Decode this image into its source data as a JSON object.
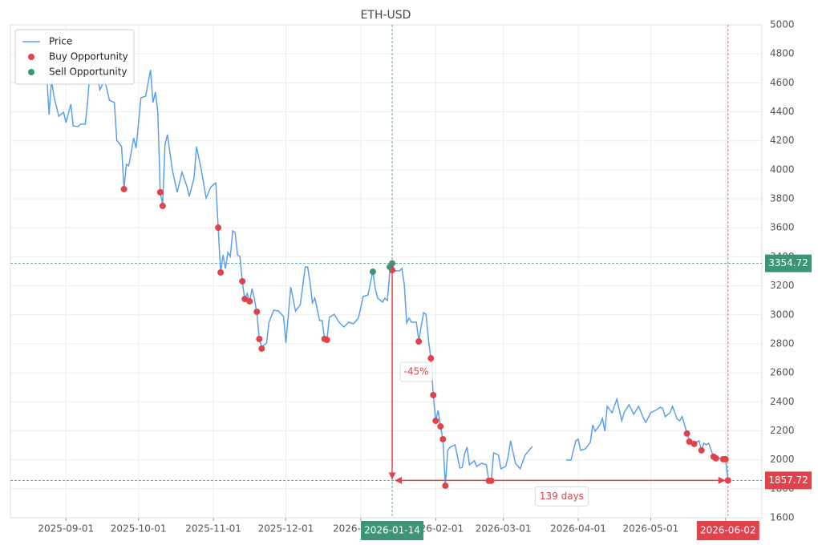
{
  "chart_data": {
    "type": "line",
    "title": "ETH-USD",
    "x": [
      "2025-08-24",
      "2025-08-25",
      "2025-08-26",
      "2025-08-27",
      "2025-08-29",
      "2025-08-31",
      "2025-09-01",
      "2025-09-03",
      "2025-09-04",
      "2025-09-06",
      "2025-09-07",
      "2025-09-09",
      "2025-09-10",
      "2025-09-11",
      "2025-09-13",
      "2025-09-15",
      "2025-09-17",
      "2025-09-19",
      "2025-09-21",
      "2025-09-22",
      "2025-09-24",
      "2025-09-25",
      "2025-09-26",
      "2025-09-27",
      "2025-09-29",
      "2025-09-30",
      "2025-10-02",
      "2025-10-04",
      "2025-10-06",
      "2025-10-07",
      "2025-10-08",
      "2025-10-09",
      "2025-10-10",
      "2025-10-11",
      "2025-10-12",
      "2025-10-13",
      "2025-10-15",
      "2025-10-17",
      "2025-10-19",
      "2025-10-21",
      "2025-10-22",
      "2025-10-24",
      "2025-10-25",
      "2025-10-27",
      "2025-10-29",
      "2025-10-31",
      "2025-11-02",
      "2025-11-03",
      "2025-11-04",
      "2025-11-05",
      "2025-11-06",
      "2025-11-07",
      "2025-11-08",
      "2025-11-09",
      "2025-11-10",
      "2025-11-11",
      "2025-11-12",
      "2025-11-13",
      "2025-11-14",
      "2025-11-15",
      "2025-11-16",
      "2025-11-17",
      "2025-11-18",
      "2025-11-19",
      "2025-11-20",
      "2025-11-21",
      "2025-11-23",
      "2025-11-24",
      "2025-11-26",
      "2025-11-28",
      "2025-11-30",
      "2025-12-01",
      "2025-12-03",
      "2025-12-05",
      "2025-12-07",
      "2025-12-09",
      "2025-12-10",
      "2025-12-11",
      "2025-12-12",
      "2025-12-13",
      "2025-12-15",
      "2025-12-16",
      "2025-12-17",
      "2025-12-18",
      "2025-12-19",
      "2025-12-21",
      "2025-12-23",
      "2025-12-25",
      "2025-12-27",
      "2025-12-29",
      "2025-12-31",
      "2026-01-02",
      "2026-01-04",
      "2026-01-06",
      "2026-01-07",
      "2026-01-08",
      "2026-01-10",
      "2026-01-11",
      "2026-01-12",
      "2026-01-13",
      "2026-01-14",
      "2026-01-15",
      "2026-01-17",
      "2026-01-18",
      "2026-01-19",
      "2026-01-20",
      "2026-01-21",
      "2026-01-22",
      "2026-01-24",
      "2026-01-25",
      "2026-01-27",
      "2026-01-28",
      "2026-01-29",
      "2026-01-30",
      "2026-01-31",
      "2026-02-01",
      "2026-02-02",
      "2026-02-03",
      "2026-02-04",
      "2026-02-05",
      "2026-02-06",
      "2026-02-07",
      "2026-02-09",
      "2026-02-11",
      "2026-02-12",
      "2026-02-13",
      "2026-02-14",
      "2026-02-15",
      "2026-02-17",
      "2026-02-18",
      "2026-02-20",
      "2026-02-22",
      "2026-02-23",
      "2026-02-24",
      "2026-02-25",
      "2026-02-27",
      "2026-02-28",
      "2026-03-02",
      "2026-03-03",
      "2026-03-04",
      "2026-03-06",
      "2026-03-08",
      "2026-03-10",
      "2026-03-13",
      "2026-03-20",
      "2026-03-27",
      "2026-03-29",
      "2026-03-31",
      "2026-04-01",
      "2026-04-02",
      "2026-04-04",
      "2026-04-06",
      "2026-04-07",
      "2026-04-08",
      "2026-04-10",
      "2026-04-11",
      "2026-04-12",
      "2026-04-13",
      "2026-04-15",
      "2026-04-17",
      "2026-04-19",
      "2026-04-20",
      "2026-04-22",
      "2026-04-24",
      "2026-04-26",
      "2026-04-28",
      "2026-04-29",
      "2026-05-01",
      "2026-05-03",
      "2026-05-05",
      "2026-05-06",
      "2026-05-07",
      "2026-05-09",
      "2026-05-10",
      "2026-05-12",
      "2026-05-13",
      "2026-05-14",
      "2026-05-16",
      "2026-05-17",
      "2026-05-19",
      "2026-05-21",
      "2026-05-22",
      "2026-05-23",
      "2026-05-24",
      "2026-05-25",
      "2026-05-27",
      "2026-05-28",
      "2026-05-30",
      "2026-05-31",
      "2026-06-01",
      "2026-06-02"
    ],
    "series": [
      {
        "name": "Price",
        "type": "line",
        "color": "#5ba0ec",
        "values": [
          4674,
          4380,
          4619,
          4508,
          4370,
          4397,
          4326,
          4453,
          4303,
          4298,
          4315,
          4315,
          4480,
          4700,
          4757,
          4552,
          4620,
          4480,
          4464,
          4204,
          4160,
          3867,
          4038,
          4027,
          4220,
          4150,
          4497,
          4508,
          4690,
          4464,
          4536,
          4397,
          3845,
          3762,
          4177,
          4243,
          4000,
          3845,
          3983,
          3889,
          3817,
          3944,
          4160,
          4000,
          3806,
          3883,
          3911,
          3596,
          3292,
          3413,
          3320,
          3430,
          3402,
          3579,
          3568,
          3413,
          3402,
          3225,
          3109,
          3148,
          3087,
          3181,
          3109,
          3015,
          2833,
          2778,
          2805,
          2949,
          3032,
          3026,
          2988,
          2805,
          3192,
          3026,
          3071,
          3330,
          3330,
          3225,
          3082,
          3115,
          2960,
          2960,
          2833,
          2827,
          2982,
          3004,
          2949,
          2916,
          2949,
          2938,
          2977,
          3126,
          3137,
          3303,
          3181,
          3115,
          3087,
          3115,
          3098,
          3292,
          3354.72,
          3303,
          3303,
          3320,
          3209,
          2944,
          2977,
          2949,
          2949,
          2822,
          3015,
          3004,
          2833,
          2700,
          2446,
          2269,
          2341,
          2230,
          2142,
          1821,
          2065,
          2087,
          2103,
          1943,
          1948,
          2042,
          2087,
          1965,
          1993,
          1954,
          1976,
          1965,
          1855,
          1855,
          2048,
          2032,
          1938,
          1954,
          2021,
          2131,
          1976,
          1938,
          2032,
          2092,
          null,
          1998,
          1998,
          2131,
          2142,
          2065,
          2076,
          2120,
          2241,
          2197,
          2241,
          2286,
          2197,
          2369,
          2325,
          2418,
          2269,
          2325,
          2380,
          2314,
          2369,
          2286,
          2258,
          2325,
          2341,
          2363,
          2352,
          2297,
          2325,
          2369,
          2280,
          2269,
          2297,
          2186,
          2131,
          2114,
          2131,
          2065,
          2114,
          2103,
          2114,
          2021,
          2010,
          2010,
          2004,
          2004,
          1857.72
        ]
      },
      {
        "name": "Buy Opportunity",
        "type": "scatter",
        "color": "#e0434b",
        "x": [
          "2025-09-25",
          "2025-10-10",
          "2025-10-11",
          "2025-11-03",
          "2025-11-04",
          "2025-11-13",
          "2025-11-14",
          "2025-11-16",
          "2025-11-19",
          "2025-11-20",
          "2025-11-21",
          "2025-12-17",
          "2025-12-18",
          "2026-01-14",
          "2026-01-25",
          "2026-01-30",
          "2026-01-31",
          "2026-02-01",
          "2026-02-03",
          "2026-02-04",
          "2026-02-05",
          "2026-02-23",
          "2026-02-24",
          "2026-05-16",
          "2026-05-17",
          "2026-05-19",
          "2026-05-22",
          "2026-05-27",
          "2026-05-28",
          "2026-05-31",
          "2026-06-01",
          "2026-06-02"
        ],
        "values": [
          3867,
          3845,
          3751,
          3601,
          3292,
          3231,
          3109,
          3093,
          3021,
          2833,
          2767,
          2833,
          2827,
          3308,
          2816,
          2700,
          2446,
          2269,
          2230,
          2142,
          1821,
          1855,
          1855,
          2181,
          2125,
          2109,
          2065,
          2021,
          2010,
          2004,
          2004,
          1857.72
        ]
      },
      {
        "name": "Sell Opportunity",
        "type": "scatter",
        "color": "#3d9479",
        "x": [
          "2026-01-06",
          "2026-01-13",
          "2026-01-14"
        ],
        "values": [
          3297,
          3330,
          3354.72
        ]
      }
    ],
    "xlim": [
      "2025-08-09",
      "2026-06-16"
    ],
    "xticks": [
      "2025-09-01",
      "2025-10-01",
      "2025-11-01",
      "2025-12-01",
      "2026-01-01",
      "2026-02-01",
      "2026-03-01",
      "2026-04-01",
      "2026-05-01",
      "2026-06-01"
    ],
    "ylim": [
      1600,
      5000
    ],
    "yticks": [
      1600,
      1800,
      2000,
      2200,
      2400,
      2600,
      2800,
      3000,
      3200,
      3400,
      3600,
      3800,
      4000,
      4200,
      4400,
      4600,
      4800,
      5000
    ],
    "grid": true,
    "legend": "upper left",
    "hlines": [
      {
        "value": 3354.72,
        "color": "#3d9479"
      },
      {
        "value": 1857.72,
        "color": "#e0434b"
      }
    ],
    "vlines": [
      {
        "x": "2026-01-14",
        "color": "#3d9479"
      },
      {
        "x": "2026-06-02",
        "color": "#e0434b"
      }
    ],
    "change_label": "-45%",
    "duration_label": "139 days"
  }
}
